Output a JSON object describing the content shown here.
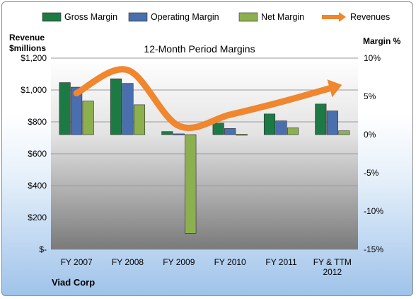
{
  "chart_data": {
    "type": "bar",
    "title": "12-Month Period Margins",
    "company": "Viad Corp",
    "y_left_label": [
      "Revenue",
      "$millions"
    ],
    "y_right_label": "Margin %",
    "categories": [
      "FY 2007",
      "FY 2008",
      "FY 2009",
      "FY 2010",
      "FY 2011",
      "FY & TTM 2012"
    ],
    "left_axis": {
      "min": 0,
      "max": 1200,
      "step": 200,
      "tick_labels": [
        "$-",
        "$200",
        "$400",
        "$600",
        "$800",
        "$1,000",
        "$1,200"
      ]
    },
    "right_axis": {
      "min": -15,
      "max": 10,
      "step": 5,
      "tick_labels": [
        "-15%",
        "-10%",
        "-5%",
        "0%",
        "5%",
        "10%"
      ]
    },
    "series": [
      {
        "name": "Gross Margin",
        "axis": "right",
        "color": "#1e7a45",
        "values": [
          6.8,
          7.3,
          0.4,
          1.5,
          2.7,
          4.0
        ]
      },
      {
        "name": "Operating Margin",
        "axis": "right",
        "color": "#4a6fae",
        "values": [
          6.2,
          6.7,
          0.1,
          0.8,
          1.8,
          3.1
        ]
      },
      {
        "name": "Net Margin",
        "axis": "right",
        "color": "#8db04e",
        "values": [
          4.4,
          3.9,
          -12.9,
          0.05,
          0.9,
          0.5
        ]
      },
      {
        "name": "Revenues",
        "axis": "left",
        "color": "#f0862d",
        "type": "line",
        "values": [
          980,
          1125,
          775,
          845,
          925,
          1015
        ]
      }
    ],
    "legend_position": "top",
    "grid": true
  }
}
